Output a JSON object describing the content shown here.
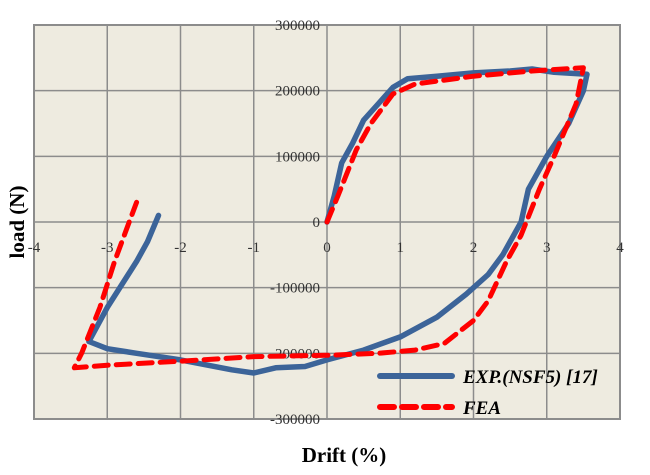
{
  "chart_data": {
    "type": "line",
    "title": "",
    "xlabel": "Drift (%)",
    "ylabel": "load (N)",
    "xlim": [
      -4,
      4
    ],
    "ylim": [
      -300000,
      300000
    ],
    "xticks": [
      -4,
      -3,
      -2,
      -1,
      0,
      1,
      2,
      3,
      4
    ],
    "yticks": [
      300000,
      200000,
      100000,
      0,
      -100000,
      -200000,
      -300000
    ],
    "xtick_labels": [
      "-4",
      "-3",
      "-2",
      "-1",
      "0",
      "1",
      "2",
      "3",
      "4"
    ],
    "ytick_labels": [
      "300000",
      "200000",
      "100000",
      "0",
      "-100000",
      "-200000",
      "-300000"
    ],
    "grid": true,
    "legend_position": "bottom-right",
    "series": [
      {
        "name": "EXP.(NSF5) [17]",
        "color": "#3c6499",
        "style": "solid",
        "x": [
          0,
          0.1,
          0.2,
          0.35,
          0.5,
          0.7,
          0.9,
          1.1,
          1.5,
          2,
          2.5,
          2.8,
          3.1,
          3.55,
          3.5,
          3.3,
          3.0,
          2.75,
          2.65,
          2.4,
          2.2,
          1.9,
          1.5,
          1.0,
          0.5,
          0,
          -0.3,
          -0.7,
          -1,
          -1.3,
          -2,
          -2.6,
          -3,
          -3.25,
          -3.0,
          -2.6,
          -2.45,
          -2.3
        ],
        "y": [
          0,
          40000,
          90000,
          120000,
          155000,
          180000,
          205000,
          218000,
          222000,
          227000,
          230000,
          233000,
          228000,
          225000,
          200000,
          150000,
          100000,
          50000,
          0,
          -50000,
          -80000,
          -110000,
          -145000,
          -175000,
          -195000,
          -210000,
          -220000,
          -222000,
          -230000,
          -225000,
          -210000,
          -200000,
          -193000,
          -182000,
          -130000,
          -60000,
          -30000,
          10000
        ]
      },
      {
        "name": "FEA",
        "color": "#ff0000",
        "style": "dashed",
        "x": [
          0,
          0.15,
          0.4,
          0.6,
          0.9,
          1.2,
          2,
          2.8,
          3.5,
          3.4,
          3.1,
          2.9,
          2.65,
          2.45,
          2.2,
          2,
          1.6,
          1.2,
          0.7,
          0,
          -1,
          -2,
          -3,
          -3.45,
          -3.35,
          -3.1,
          -2.9,
          -2.7,
          -2.6
        ],
        "y": [
          0,
          40000,
          110000,
          150000,
          195000,
          210000,
          222000,
          230000,
          235000,
          180000,
          100000,
          50000,
          -20000,
          -60000,
          -120000,
          -150000,
          -185000,
          -195000,
          -200000,
          -203000,
          -205000,
          -212000,
          -218000,
          -222000,
          -200000,
          -130000,
          -60000,
          0,
          30000
        ]
      }
    ]
  }
}
